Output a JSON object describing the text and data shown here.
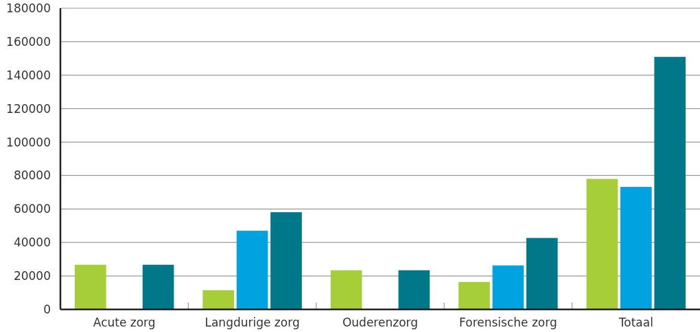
{
  "chart_data": {
    "type": "bar",
    "categories": [
      "Acute zorg",
      "Langdurige zorg",
      "Ouderenzorg",
      "Forensische zorg",
      "Totaal"
    ],
    "series": [
      {
        "color": "#a6ce39",
        "values": [
          26700,
          11500,
          23400,
          16400,
          78000
        ]
      },
      {
        "color": "#00a3e0",
        "values": [
          null,
          47000,
          null,
          26300,
          73200
        ]
      },
      {
        "color": "#00788a",
        "values": [
          26700,
          58100,
          23400,
          42700,
          150900
        ]
      }
    ],
    "ylim": [
      0,
      180000
    ],
    "yticks": [
      0,
      20000,
      40000,
      60000,
      80000,
      100000,
      120000,
      140000,
      160000,
      180000
    ],
    "grid": "y"
  }
}
